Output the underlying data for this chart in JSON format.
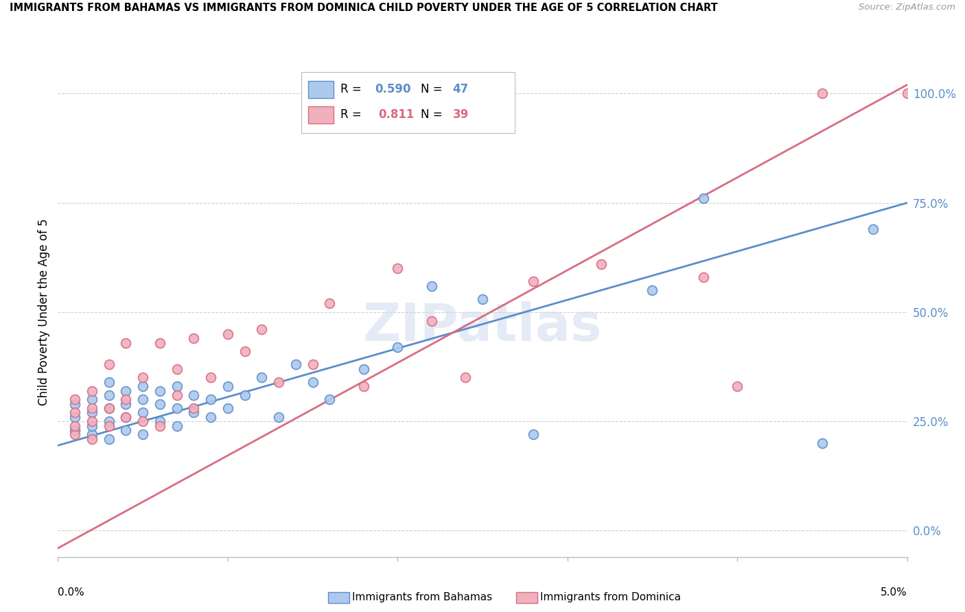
{
  "title": "IMMIGRANTS FROM BAHAMAS VS IMMIGRANTS FROM DOMINICA CHILD POVERTY UNDER THE AGE OF 5 CORRELATION CHART",
  "source": "Source: ZipAtlas.com",
  "ylabel": "Child Poverty Under the Age of 5",
  "legend_label1": "Immigrants from Bahamas",
  "legend_label2": "Immigrants from Dominica",
  "R1": "0.590",
  "N1": "47",
  "R2": "0.811",
  "N2": "39",
  "color_blue": "#adc9ee",
  "color_pink": "#f0b0be",
  "color_blue_line": "#5b8ec9",
  "color_pink_line": "#d96b80",
  "color_blue_text": "#5b8ec9",
  "color_pink_text": "#d96b80",
  "watermark": "ZIPatlas",
  "ytick_labels": [
    "0.0%",
    "25.0%",
    "50.0%",
    "75.0%",
    "100.0%"
  ],
  "ytick_values": [
    0.0,
    0.25,
    0.5,
    0.75,
    1.0
  ],
  "xlim": [
    0.0,
    0.05
  ],
  "ylim": [
    -0.06,
    1.06
  ],
  "blue_scatter_x": [
    0.001,
    0.001,
    0.001,
    0.002,
    0.002,
    0.002,
    0.002,
    0.003,
    0.003,
    0.003,
    0.003,
    0.003,
    0.004,
    0.004,
    0.004,
    0.004,
    0.005,
    0.005,
    0.005,
    0.005,
    0.006,
    0.006,
    0.006,
    0.007,
    0.007,
    0.007,
    0.008,
    0.008,
    0.009,
    0.009,
    0.01,
    0.01,
    0.011,
    0.012,
    0.013,
    0.014,
    0.015,
    0.016,
    0.018,
    0.02,
    0.022,
    0.025,
    0.028,
    0.035,
    0.038,
    0.045,
    0.048
  ],
  "blue_scatter_y": [
    0.23,
    0.26,
    0.29,
    0.22,
    0.24,
    0.27,
    0.3,
    0.21,
    0.25,
    0.28,
    0.31,
    0.34,
    0.23,
    0.26,
    0.29,
    0.32,
    0.22,
    0.27,
    0.3,
    0.33,
    0.25,
    0.29,
    0.32,
    0.24,
    0.28,
    0.33,
    0.27,
    0.31,
    0.26,
    0.3,
    0.28,
    0.33,
    0.31,
    0.35,
    0.26,
    0.38,
    0.34,
    0.3,
    0.37,
    0.42,
    0.56,
    0.53,
    0.22,
    0.55,
    0.76,
    0.2,
    0.69
  ],
  "pink_scatter_x": [
    0.001,
    0.001,
    0.001,
    0.001,
    0.002,
    0.002,
    0.002,
    0.002,
    0.003,
    0.003,
    0.003,
    0.004,
    0.004,
    0.004,
    0.005,
    0.005,
    0.006,
    0.006,
    0.007,
    0.007,
    0.008,
    0.008,
    0.009,
    0.01,
    0.011,
    0.012,
    0.013,
    0.015,
    0.016,
    0.018,
    0.02,
    0.022,
    0.024,
    0.028,
    0.032,
    0.038,
    0.04,
    0.045,
    0.05
  ],
  "pink_scatter_y": [
    0.22,
    0.24,
    0.27,
    0.3,
    0.21,
    0.25,
    0.28,
    0.32,
    0.24,
    0.28,
    0.38,
    0.26,
    0.3,
    0.43,
    0.25,
    0.35,
    0.24,
    0.43,
    0.31,
    0.37,
    0.28,
    0.44,
    0.35,
    0.45,
    0.41,
    0.46,
    0.34,
    0.38,
    0.52,
    0.33,
    0.6,
    0.48,
    0.35,
    0.57,
    0.61,
    0.58,
    0.33,
    1.0,
    1.0
  ],
  "blue_line_x0": 0.0,
  "blue_line_y0": 0.195,
  "blue_line_x1": 0.05,
  "blue_line_y1": 0.75,
  "pink_line_x0": 0.0,
  "pink_line_y0": -0.04,
  "pink_line_x1": 0.05,
  "pink_line_y1": 1.02
}
